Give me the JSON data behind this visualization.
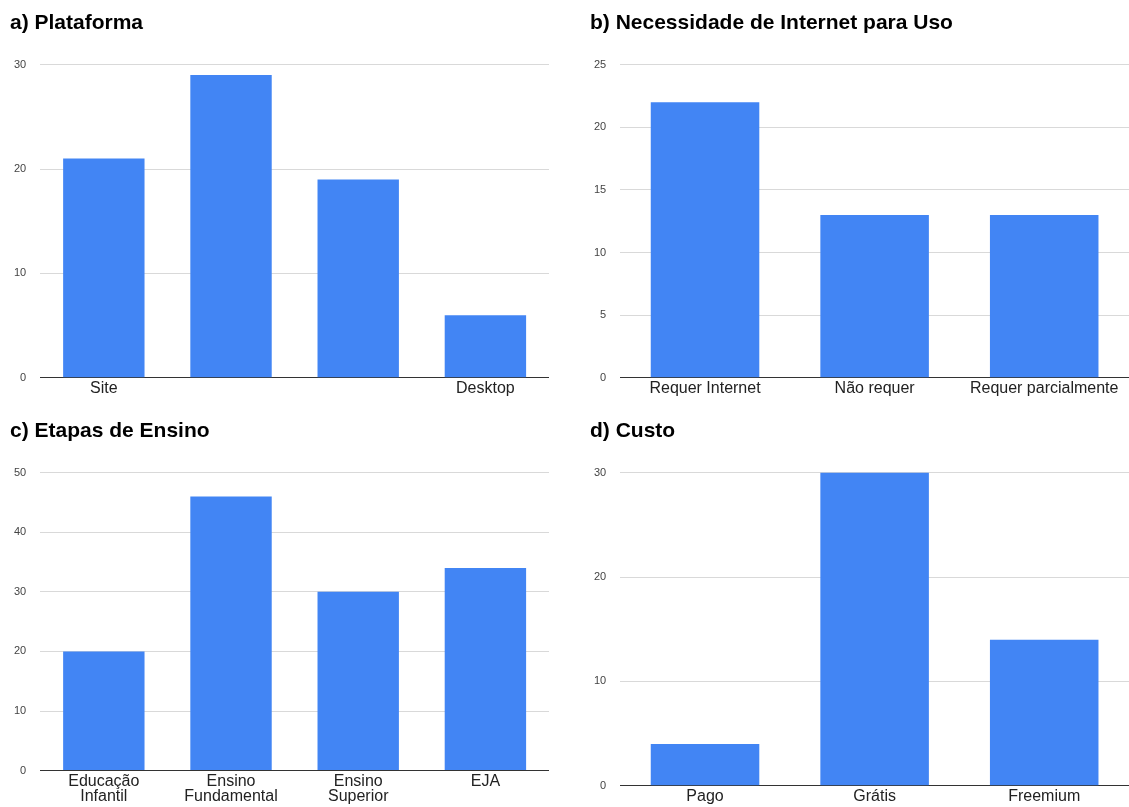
{
  "chart_data": [
    {
      "type": "bar",
      "title": "a) Plataforma",
      "categories": [
        "Site",
        null,
        null,
        "Desktop"
      ],
      "values": [
        21,
        29,
        19,
        6
      ],
      "color": "#4285f4",
      "ylim": [
        0,
        30
      ],
      "yticks": [
        0,
        10,
        20,
        30
      ],
      "grid": "y"
    },
    {
      "type": "bar",
      "title": "b) Necessidade de Internet para Uso",
      "categories": [
        "Requer Internet",
        "Não requer",
        "Requer parcialmente"
      ],
      "values": [
        22,
        13,
        13
      ],
      "color": "#4285f4",
      "ylim": [
        0,
        25
      ],
      "yticks": [
        0,
        5,
        10,
        15,
        20,
        25
      ],
      "grid": "y"
    },
    {
      "type": "bar",
      "title": "c) Etapas de Ensino",
      "categories": [
        "Educação Infantil",
        "Ensino Fundamental",
        "Ensino Superior",
        "EJA"
      ],
      "values": [
        20,
        46,
        30,
        34
      ],
      "color": "#4285f4",
      "ylim": [
        0,
        50
      ],
      "yticks": [
        0,
        10,
        20,
        30,
        40,
        50
      ],
      "grid": "y"
    },
    {
      "type": "bar",
      "title": "d) Custo",
      "categories": [
        "Pago",
        "Grátis",
        "Freemium"
      ],
      "values": [
        4,
        30,
        14
      ],
      "color": "#4285f4",
      "ylim": [
        0,
        30
      ],
      "yticks": [
        0,
        10,
        20,
        30
      ],
      "grid": "y"
    }
  ]
}
